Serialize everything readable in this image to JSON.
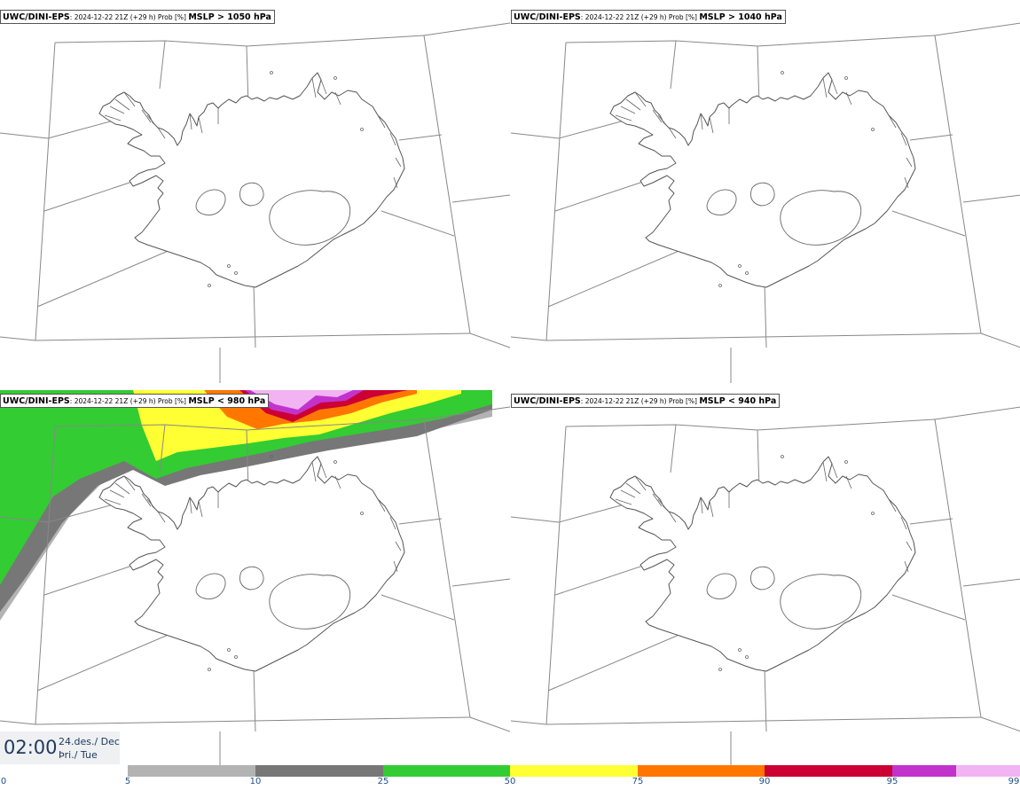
{
  "panels": [
    {
      "model": "UWC/DINI-EPS",
      "meta": ": 2024-12-22 21Z (+29 h) Prob [%] ",
      "var": "MSLP > 1050 hPa"
    },
    {
      "model": "UWC/DINI-EPS",
      "meta": ": 2024-12-22 21Z (+29 h) Prob [%] ",
      "var": "MSLP > 1040 hPa"
    },
    {
      "model": "UWC/DINI-EPS",
      "meta": ": 2024-12-22 21Z (+29 h) Prob [%] ",
      "var": "MSLP < 980 hPa"
    },
    {
      "model": "UWC/DINI-EPS",
      "meta": ": 2024-12-22 21Z (+29 h) Prob [%] ",
      "var": "MSLP < 940 hPa"
    }
  ],
  "valid_time": {
    "time": "02:00",
    "date_line1": "24.des./ Dec",
    "date_line2": "Þri./ Tue"
  },
  "colorbar": {
    "ticks": [
      "0",
      "5",
      "10",
      "25",
      "50",
      "75",
      "90",
      "95",
      "99"
    ],
    "colors": [
      "#b3b3b3",
      "#777777",
      "#33cc33",
      "#ffff33",
      "#ff7700",
      "#cc0033",
      "#c233cc",
      "#f2b3f2"
    ]
  }
}
